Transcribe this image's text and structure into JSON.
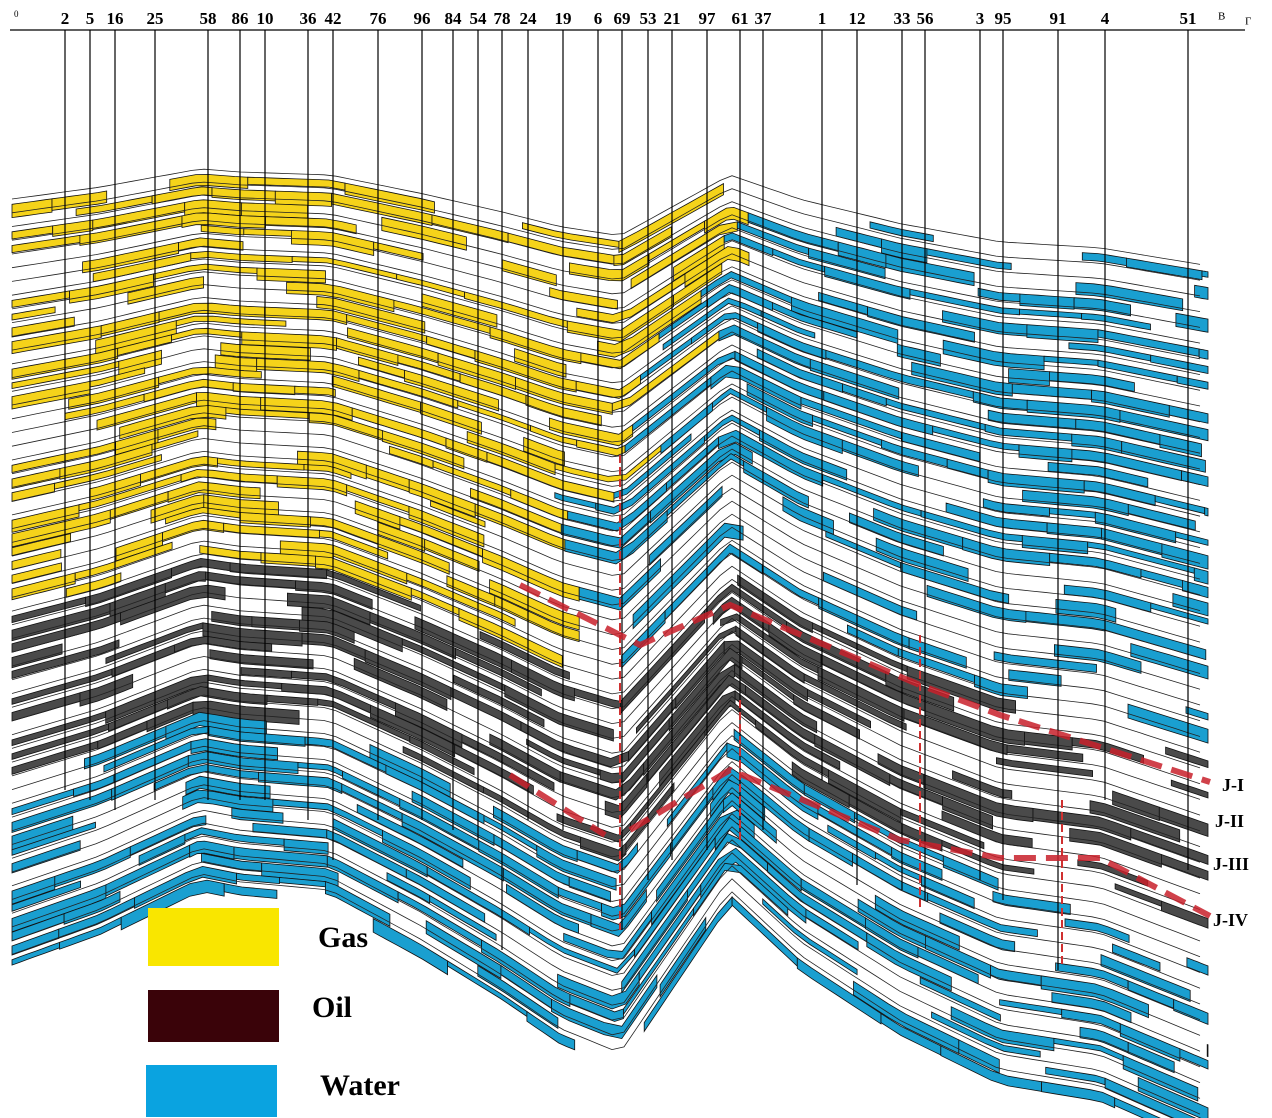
{
  "header": {
    "start": "0",
    "direction": "В",
    "end": "Г"
  },
  "wells": [
    "2",
    "5",
    "16",
    "25",
    "58",
    "86",
    "10",
    "36",
    "42",
    "76",
    "96",
    "84",
    "54",
    "78",
    "24",
    "19",
    "6",
    "69",
    "53",
    "21",
    "97",
    "61",
    "37",
    "1",
    "12",
    "33",
    "56",
    "3",
    "95",
    "91",
    "4",
    "51"
  ],
  "horizons": [
    "J-I",
    "J-II",
    "J-III",
    "J-IV"
  ],
  "legend": [
    {
      "label": "Gas",
      "color": "#f9e600"
    },
    {
      "label": "Oil",
      "color": "#3a0309"
    },
    {
      "label": "Water",
      "color": "#0aa3e0"
    }
  ]
}
